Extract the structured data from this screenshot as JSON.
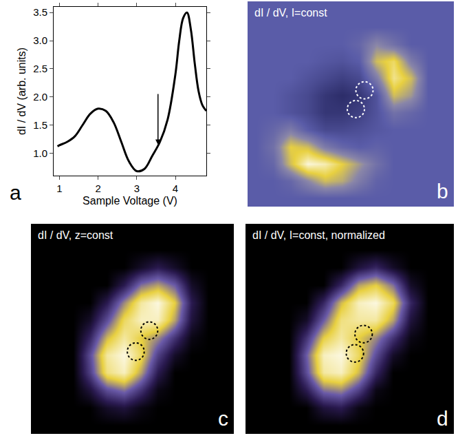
{
  "chart_data": [
    {
      "type": "line",
      "panel_label": "a",
      "x_label": "Sample Voltage (V)",
      "y_label": "dI / dV (arb. units)",
      "x": [
        0.95,
        1.0,
        1.2,
        1.4,
        1.6,
        1.8,
        2.0,
        2.2,
        2.4,
        2.6,
        2.8,
        3.0,
        3.2,
        3.4,
        3.6,
        3.8,
        4.0,
        4.1,
        4.2,
        4.3,
        4.4,
        4.5,
        4.6,
        4.7,
        4.8
      ],
      "values": [
        1.12,
        1.14,
        1.2,
        1.3,
        1.5,
        1.7,
        1.79,
        1.75,
        1.55,
        1.2,
        0.85,
        0.68,
        0.72,
        0.95,
        1.2,
        1.6,
        2.4,
        3.0,
        3.4,
        3.5,
        3.2,
        2.6,
        2.1,
        1.85,
        1.75
      ],
      "color": "#000000",
      "xlim": [
        0.85,
        4.8
      ],
      "xticks": [
        1,
        2,
        3,
        4
      ],
      "ylim": [
        0.6,
        3.6
      ],
      "yticks": [
        {
          "value": 1,
          "label": "1.0"
        },
        {
          "value": 1.5,
          "label": "1.5"
        },
        {
          "value": 2,
          "label": "2.0"
        },
        {
          "value": 2.5,
          "label": "2.5"
        },
        {
          "value": 3,
          "label": "3.0"
        },
        {
          "value": 3.5,
          "label": "3.5"
        }
      ],
      "annotations": [
        {
          "x": 3.55,
          "y": 1.15
        }
      ]
    },
    {
      "type": "heatmap",
      "panel_label": "b",
      "title": "dI / dV, I=const",
      "tick_labels": false,
      "cells": [
        [
          0.35,
          0.35,
          0.35,
          0.35,
          0.35,
          0.35,
          0.35,
          0.35,
          0.35,
          0.35,
          0.35,
          0.35
        ],
        [
          0.35,
          0.35,
          0.35,
          0.35,
          0.35,
          0.35,
          0.35,
          0.35,
          0.35,
          0.35,
          0.35,
          0.35
        ],
        [
          0.35,
          0.35,
          0.35,
          0.35,
          0.35,
          0.35,
          0.4,
          0.55,
          0.45,
          0.35,
          0.35,
          0.35
        ],
        [
          0.35,
          0.35,
          0.35,
          0.35,
          0.32,
          0.3,
          0.35,
          0.7,
          0.8,
          0.5,
          0.35,
          0.35
        ],
        [
          0.35,
          0.35,
          0.35,
          0.3,
          0.25,
          0.2,
          0.25,
          0.5,
          0.85,
          0.7,
          0.35,
          0.35
        ],
        [
          0.35,
          0.35,
          0.3,
          0.25,
          0.15,
          0.1,
          0.15,
          0.3,
          0.7,
          0.6,
          0.35,
          0.35
        ],
        [
          0.35,
          0.35,
          0.3,
          0.25,
          0.15,
          0.15,
          0.2,
          0.3,
          0.45,
          0.4,
          0.35,
          0.35
        ],
        [
          0.35,
          0.4,
          0.5,
          0.35,
          0.25,
          0.25,
          0.28,
          0.32,
          0.35,
          0.35,
          0.35,
          0.35
        ],
        [
          0.35,
          0.45,
          0.75,
          0.7,
          0.5,
          0.4,
          0.35,
          0.38,
          0.35,
          0.35,
          0.35,
          0.35
        ],
        [
          0.35,
          0.4,
          0.7,
          0.95,
          0.9,
          0.75,
          0.6,
          0.45,
          0.35,
          0.35,
          0.35,
          0.35
        ],
        [
          0.35,
          0.35,
          0.4,
          0.55,
          0.7,
          0.65,
          0.5,
          0.38,
          0.35,
          0.35,
          0.35,
          0.35
        ],
        [
          0.35,
          0.35,
          0.35,
          0.35,
          0.35,
          0.35,
          0.35,
          0.35,
          0.35,
          0.35,
          0.35,
          0.35
        ]
      ]
    },
    {
      "type": "heatmap",
      "panel_label": "c",
      "title": "dI / dV, z=const",
      "tick_labels": false,
      "cells": [
        [
          0,
          0,
          0,
          0,
          0,
          0,
          0,
          0,
          0,
          0,
          0,
          0
        ],
        [
          0,
          0,
          0,
          0,
          0,
          0,
          0,
          0,
          0,
          0,
          0,
          0
        ],
        [
          0,
          0,
          0,
          0,
          0,
          0,
          0.1,
          0.2,
          0.1,
          0,
          0,
          0
        ],
        [
          0,
          0,
          0,
          0,
          0,
          0.2,
          0.5,
          0.6,
          0.45,
          0.1,
          0,
          0
        ],
        [
          0,
          0,
          0,
          0,
          0.2,
          0.55,
          0.85,
          0.95,
          0.7,
          0.2,
          0,
          0
        ],
        [
          0,
          0,
          0,
          0.1,
          0.4,
          0.75,
          0.9,
          0.9,
          0.6,
          0.15,
          0,
          0
        ],
        [
          0,
          0,
          0,
          0.25,
          0.65,
          0.85,
          0.7,
          0.55,
          0.3,
          0.05,
          0,
          0
        ],
        [
          0,
          0,
          0,
          0.4,
          0.85,
          0.95,
          0.75,
          0.35,
          0.1,
          0,
          0,
          0
        ],
        [
          0,
          0,
          0,
          0.35,
          0.8,
          0.9,
          0.6,
          0.2,
          0,
          0,
          0,
          0
        ],
        [
          0,
          0,
          0,
          0.15,
          0.4,
          0.5,
          0.3,
          0.05,
          0,
          0,
          0,
          0
        ],
        [
          0,
          0,
          0,
          0,
          0.1,
          0.15,
          0.05,
          0,
          0,
          0,
          0,
          0
        ],
        [
          0,
          0,
          0,
          0,
          0,
          0,
          0,
          0,
          0,
          0,
          0,
          0
        ]
      ]
    },
    {
      "type": "heatmap",
      "panel_label": "d",
      "title": "dI / dV, I=const, normalized",
      "tick_labels": false,
      "cells": [
        [
          0,
          0,
          0,
          0,
          0,
          0,
          0,
          0,
          0,
          0,
          0,
          0
        ],
        [
          0,
          0,
          0,
          0,
          0,
          0,
          0,
          0,
          0,
          0,
          0,
          0
        ],
        [
          0,
          0,
          0,
          0,
          0,
          0,
          0.15,
          0.25,
          0.1,
          0,
          0,
          0
        ],
        [
          0,
          0,
          0,
          0,
          0,
          0.25,
          0.6,
          0.7,
          0.5,
          0.1,
          0,
          0
        ],
        [
          0,
          0,
          0,
          0,
          0.25,
          0.65,
          0.9,
          0.95,
          0.75,
          0.25,
          0,
          0
        ],
        [
          0,
          0,
          0,
          0.1,
          0.45,
          0.8,
          0.85,
          0.85,
          0.6,
          0.15,
          0,
          0
        ],
        [
          0,
          0,
          0,
          0.3,
          0.7,
          0.85,
          0.7,
          0.55,
          0.3,
          0.05,
          0,
          0
        ],
        [
          0,
          0,
          0,
          0.45,
          0.9,
          0.95,
          0.75,
          0.4,
          0.1,
          0,
          0,
          0
        ],
        [
          0,
          0,
          0,
          0.4,
          0.85,
          0.9,
          0.65,
          0.25,
          0,
          0,
          0,
          0
        ],
        [
          0,
          0,
          0,
          0.2,
          0.5,
          0.55,
          0.35,
          0.05,
          0,
          0,
          0,
          0
        ],
        [
          0,
          0,
          0,
          0,
          0.15,
          0.2,
          0.05,
          0,
          0,
          0,
          0,
          0
        ],
        [
          0,
          0,
          0,
          0,
          0,
          0,
          0,
          0,
          0,
          0,
          0,
          0
        ]
      ]
    }
  ]
}
